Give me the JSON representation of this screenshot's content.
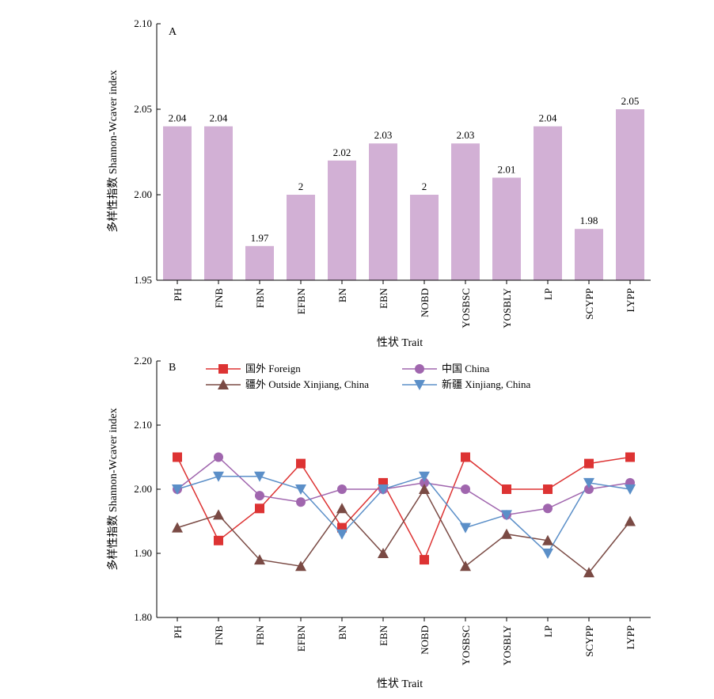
{
  "chart_data": [
    {
      "type": "bar",
      "panel_label": "A",
      "categories": [
        "PH",
        "FNB",
        "FBN",
        "EFBN",
        "BN",
        "EBN",
        "NOBD",
        "YOSBSC",
        "YOSBLY",
        "LP",
        "SCYPP",
        "LYPP"
      ],
      "values": [
        2.04,
        2.04,
        1.97,
        2.0,
        2.02,
        2.03,
        2.0,
        2.03,
        2.01,
        2.04,
        1.98,
        2.05
      ],
      "value_labels": [
        "2.04",
        "2.04",
        "1.97",
        "2",
        "2.02",
        "2.03",
        "2",
        "2.03",
        "2.01",
        "2.04",
        "1.98",
        "2.05"
      ],
      "xlabel": "性状 Trait",
      "ylabel": "多样性指数 Shannon-Wcaver index",
      "ylim": [
        1.95,
        2.1
      ],
      "yticks": [
        "1.95",
        "2.00",
        "2.05",
        "2.10"
      ],
      "bar_color": "#d2b0d5",
      "grid": false
    },
    {
      "type": "line",
      "panel_label": "B",
      "categories": [
        "PH",
        "FNB",
        "FBN",
        "EFBN",
        "BN",
        "EBN",
        "NOBD",
        "YOSBSC",
        "YOSBLY",
        "LP",
        "SCYPP",
        "LYPP"
      ],
      "series": [
        {
          "name": "国外 Foreign",
          "marker": "square",
          "color": "#dd3333",
          "values": [
            2.05,
            1.92,
            1.97,
            2.04,
            1.94,
            2.01,
            1.89,
            2.05,
            2.0,
            2.0,
            2.04,
            2.05
          ]
        },
        {
          "name": "中国 China",
          "marker": "circle",
          "color": "#a066ae",
          "values": [
            2.0,
            2.05,
            1.99,
            1.98,
            2.0,
            2.0,
            2.01,
            2.0,
            1.96,
            1.97,
            2.0,
            2.01
          ]
        },
        {
          "name": "疆外 Outside Xinjiang,  China",
          "marker": "triangle-up",
          "color": "#7a4a44",
          "values": [
            1.94,
            1.96,
            1.89,
            1.88,
            1.97,
            1.9,
            2.0,
            1.88,
            1.93,
            1.92,
            1.87,
            1.95
          ]
        },
        {
          "name": "新疆 Xinjiang, China",
          "marker": "triangle-down",
          "color": "#5b8fc8",
          "values": [
            2.0,
            2.02,
            2.02,
            2.0,
            1.93,
            2.0,
            2.02,
            1.94,
            1.96,
            1.9,
            2.01,
            2.0
          ]
        }
      ],
      "xlabel": "性状 Trait",
      "ylabel": "多样性指数 Shannon-Wcaver index",
      "ylim": [
        1.8,
        2.2
      ],
      "yticks": [
        "1.80",
        "1.90",
        "2.00",
        "2.10",
        "2.20"
      ],
      "legend_position": "top",
      "grid": false
    }
  ]
}
